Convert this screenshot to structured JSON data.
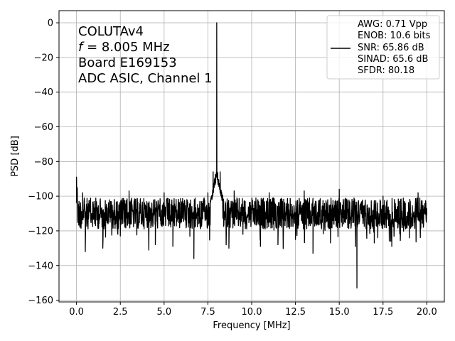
{
  "chart_data": {
    "type": "line",
    "title": "",
    "xlabel": "Frequency [MHz]",
    "ylabel": "PSD [dB]",
    "xlim": [
      -1.0,
      21.0
    ],
    "ylim": [
      -161,
      7
    ],
    "xticks": [
      0.0,
      2.5,
      5.0,
      7.5,
      10.0,
      12.5,
      15.0,
      17.5,
      20.0
    ],
    "xtick_labels": [
      "0.0",
      "2.5",
      "5.0",
      "7.5",
      "10.0",
      "12.5",
      "15.0",
      "17.5",
      "20.0"
    ],
    "yticks": [
      0,
      -20,
      -40,
      -60,
      -80,
      -100,
      -120,
      -140,
      -160
    ],
    "ytick_labels": [
      "0",
      "−20",
      "−40",
      "−60",
      "−80",
      "−100",
      "−120",
      "−140",
      "−160"
    ],
    "grid": true,
    "line_color": "#000000",
    "annotation": {
      "line1": "COLUTAv4",
      "line2_italic": "f",
      "line2_rest": " = 8.005 MHz",
      "line3": "Board E169153",
      "line4": "ADC ASIC, Channel  1"
    },
    "legend": {
      "position": "top-right",
      "entries": [
        "AWG: 0.71 Vpp",
        "ENOB: 10.6 bits",
        "SNR: 65.86 dB",
        "SINAD: 65.6 dB",
        "SFDR: 80.18"
      ]
    },
    "series": [
      {
        "description_points": [
          {
            "x": 0.0,
            "y": -89
          },
          {
            "x": 0.05,
            "y": -105
          },
          {
            "x": 0.2,
            "y": -118
          },
          {
            "x": 0.35,
            "y": -98
          },
          {
            "x": 0.5,
            "y": -132
          },
          {
            "x": 1.0,
            "y": -103
          },
          {
            "x": 1.5,
            "y": -130
          },
          {
            "x": 2.0,
            "y": -110
          },
          {
            "x": 2.5,
            "y": -123
          },
          {
            "x": 3.0,
            "y": -97
          },
          {
            "x": 3.5,
            "y": -118
          },
          {
            "x": 4.0,
            "y": -112
          },
          {
            "x": 4.5,
            "y": -128
          },
          {
            "x": 5.0,
            "y": -98
          },
          {
            "x": 5.5,
            "y": -129
          },
          {
            "x": 6.0,
            "y": -105
          },
          {
            "x": 6.7,
            "y": -136
          },
          {
            "x": 7.0,
            "y": -112
          },
          {
            "x": 7.5,
            "y": -98
          },
          {
            "x": 7.8,
            "y": -86
          },
          {
            "x": 8.005,
            "y": 0
          },
          {
            "x": 8.2,
            "y": -86
          },
          {
            "x": 8.5,
            "y": -112
          },
          {
            "x": 8.7,
            "y": -130
          },
          {
            "x": 9.0,
            "y": -97
          },
          {
            "x": 9.5,
            "y": -122
          },
          {
            "x": 10.0,
            "y": -110
          },
          {
            "x": 10.5,
            "y": -129
          },
          {
            "x": 11.0,
            "y": -98
          },
          {
            "x": 11.5,
            "y": -128
          },
          {
            "x": 12.0,
            "y": -106
          },
          {
            "x": 12.5,
            "y": -125
          },
          {
            "x": 13.0,
            "y": -97
          },
          {
            "x": 13.5,
            "y": -133
          },
          {
            "x": 14.0,
            "y": -108
          },
          {
            "x": 14.5,
            "y": -127
          },
          {
            "x": 15.0,
            "y": -96
          },
          {
            "x": 15.5,
            "y": -118
          },
          {
            "x": 16.01,
            "y": -153
          },
          {
            "x": 16.5,
            "y": -110
          },
          {
            "x": 17.0,
            "y": -127
          },
          {
            "x": 17.5,
            "y": -100
          },
          {
            "x": 18.0,
            "y": -129
          },
          {
            "x": 18.5,
            "y": -102
          },
          {
            "x": 19.0,
            "y": -124
          },
          {
            "x": 19.5,
            "y": -98
          },
          {
            "x": 20.0,
            "y": -111
          }
        ]
      }
    ]
  }
}
